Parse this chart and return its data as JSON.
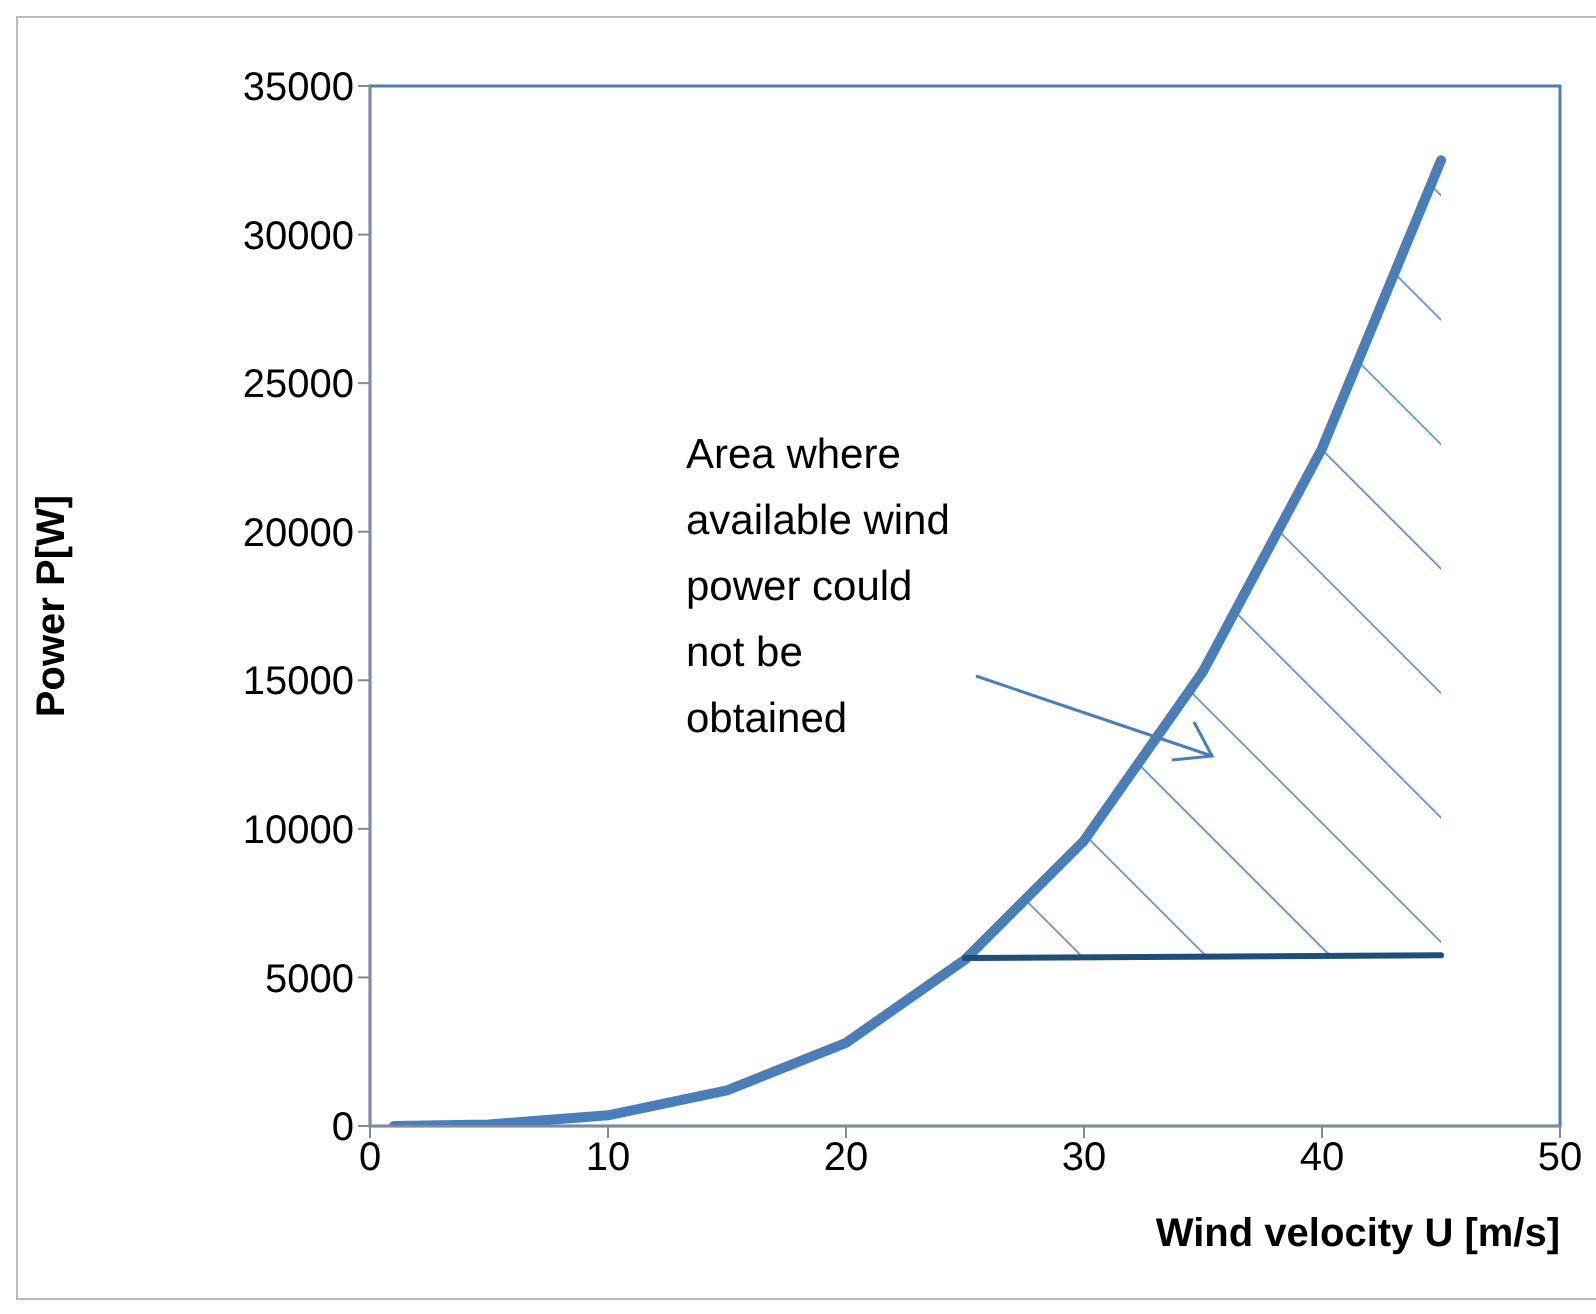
{
  "chart_data": {
    "type": "line",
    "xlabel": "Wind velocity U [m/s]",
    "ylabel": "Power P[W]",
    "xlim": [
      0,
      50
    ],
    "xticks": [
      0,
      10,
      20,
      30,
      40,
      50
    ],
    "ylim": [
      0,
      35000
    ],
    "yticks": [
      0,
      5000,
      10000,
      15000,
      20000,
      25000,
      30000,
      35000
    ],
    "grid": false,
    "marker": "none",
    "line_style": "solid",
    "series": [
      {
        "color": "#4a7ebb",
        "x": [
          1,
          5,
          10,
          15,
          20,
          25,
          30,
          35,
          40,
          45
        ],
        "values": [
          0,
          50,
          360,
          1200,
          2800,
          5600,
          9600,
          15300,
          22800,
          32500
        ]
      },
      {
        "color": "#1f4e79",
        "x": [
          25,
          45
        ],
        "values": [
          5650,
          5750
        ]
      }
    ],
    "annotations": [
      "Area where available wind power could not be obtained"
    ]
  }
}
